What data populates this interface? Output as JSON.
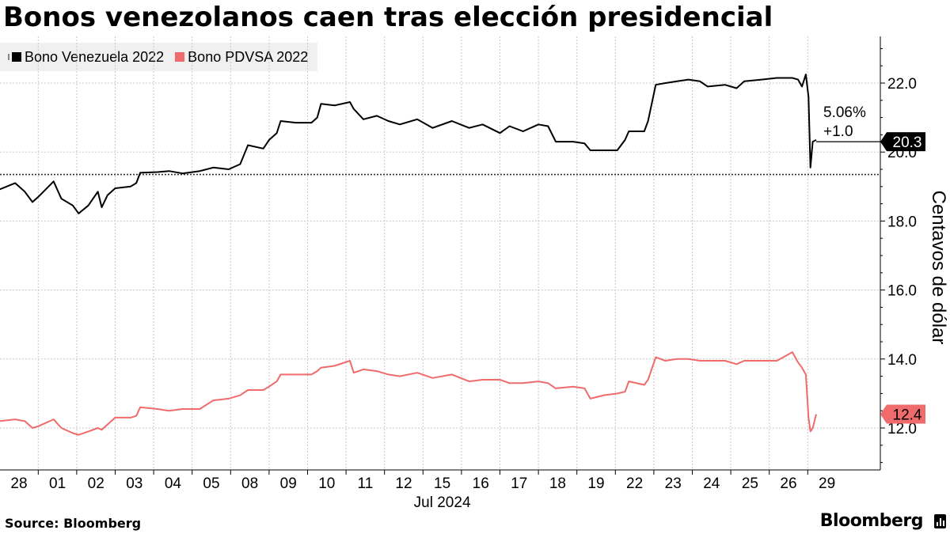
{
  "title": "Bonos venezolanos caen tras elección presidencial",
  "legend": [
    {
      "label": "Bono Venezuela 2022",
      "color": "#000000"
    },
    {
      "label": "Bono PDVSA 2022",
      "color": "#f06b6b"
    }
  ],
  "source": "Source:  Bloomberg",
  "brand": "Bloomberg",
  "chart_data": {
    "type": "line",
    "ylabel": "Centavos de dólar",
    "xlabel": "Jul 2024",
    "ylim": [
      11.0,
      23.3
    ],
    "yticks": [
      "22.0",
      "20.0",
      "18.0",
      "16.0",
      "14.0",
      "12.0"
    ],
    "ytick_values": [
      22.0,
      20.0,
      18.0,
      16.0,
      14.0,
      12.0
    ],
    "xticks": [
      "28",
      "01",
      "02",
      "03",
      "04",
      "05",
      "08",
      "09",
      "10",
      "11",
      "12",
      "15",
      "16",
      "17",
      "18",
      "19",
      "22",
      "23",
      "24",
      "25",
      "26",
      "29"
    ],
    "reference_line": 19.35,
    "annotation": {
      "pct": "5.06%",
      "change": "+1.0"
    },
    "last_values": [
      {
        "series": "Bono Venezuela 2022",
        "label": "20.3",
        "value": 20.3
      },
      {
        "series": "Bono PDVSA 2022",
        "label": "12.4",
        "value": 12.4
      }
    ],
    "series": [
      {
        "name": "Bono Venezuela 2022",
        "color": "#000000",
        "points": [
          [
            -0.5,
            18.92
          ],
          [
            -0.1,
            19.1
          ],
          [
            0.15,
            18.85
          ],
          [
            0.35,
            18.55
          ],
          [
            0.5,
            18.7
          ],
          [
            0.9,
            19.15
          ],
          [
            1.1,
            18.65
          ],
          [
            1.4,
            18.45
          ],
          [
            1.55,
            18.22
          ],
          [
            1.8,
            18.45
          ],
          [
            2.05,
            18.85
          ],
          [
            2.15,
            18.4
          ],
          [
            2.3,
            18.75
          ],
          [
            2.5,
            18.95
          ],
          [
            2.9,
            19.0
          ],
          [
            3.05,
            19.1
          ],
          [
            3.15,
            19.4
          ],
          [
            3.6,
            19.42
          ],
          [
            3.9,
            19.45
          ],
          [
            4.25,
            19.38
          ],
          [
            4.7,
            19.45
          ],
          [
            5.05,
            19.55
          ],
          [
            5.45,
            19.5
          ],
          [
            5.75,
            19.65
          ],
          [
            5.95,
            20.2
          ],
          [
            6.35,
            20.1
          ],
          [
            6.5,
            20.35
          ],
          [
            6.7,
            20.55
          ],
          [
            6.8,
            20.9
          ],
          [
            7.2,
            20.85
          ],
          [
            7.6,
            20.85
          ],
          [
            7.75,
            21.0
          ],
          [
            7.85,
            21.4
          ],
          [
            8.2,
            21.35
          ],
          [
            8.6,
            21.45
          ],
          [
            8.7,
            21.25
          ],
          [
            8.95,
            20.95
          ],
          [
            9.3,
            21.05
          ],
          [
            9.6,
            20.9
          ],
          [
            9.9,
            20.8
          ],
          [
            10.35,
            20.95
          ],
          [
            10.75,
            20.7
          ],
          [
            11.25,
            20.9
          ],
          [
            11.7,
            20.7
          ],
          [
            12.05,
            20.8
          ],
          [
            12.5,
            20.55
          ],
          [
            12.75,
            20.75
          ],
          [
            13.1,
            20.6
          ],
          [
            13.5,
            20.8
          ],
          [
            13.75,
            20.75
          ],
          [
            13.95,
            20.3
          ],
          [
            14.4,
            20.3
          ],
          [
            14.7,
            20.25
          ],
          [
            14.85,
            20.05
          ],
          [
            15.2,
            20.05
          ],
          [
            15.55,
            20.05
          ],
          [
            15.75,
            20.35
          ],
          [
            15.85,
            20.6
          ],
          [
            16.25,
            20.6
          ],
          [
            16.35,
            20.9
          ],
          [
            16.55,
            21.95
          ],
          [
            16.8,
            22.0
          ],
          [
            17.1,
            22.05
          ],
          [
            17.4,
            22.1
          ],
          [
            17.7,
            22.05
          ],
          [
            17.9,
            21.9
          ],
          [
            18.35,
            21.95
          ],
          [
            18.65,
            21.85
          ],
          [
            18.85,
            22.05
          ],
          [
            19.3,
            22.1
          ],
          [
            19.7,
            22.15
          ],
          [
            20.1,
            22.15
          ],
          [
            20.25,
            22.1
          ],
          [
            20.35,
            21.9
          ],
          [
            20.45,
            22.25
          ],
          [
            20.52,
            21.6
          ],
          [
            20.57,
            19.55
          ],
          [
            20.63,
            20.3
          ],
          [
            20.72,
            20.35
          ]
        ]
      },
      {
        "name": "Bono PDVSA 2022",
        "color": "#f06b6b",
        "points": [
          [
            -0.5,
            12.2
          ],
          [
            -0.1,
            12.25
          ],
          [
            0.15,
            12.2
          ],
          [
            0.35,
            12.0
          ],
          [
            0.5,
            12.05
          ],
          [
            0.9,
            12.25
          ],
          [
            1.1,
            12.0
          ],
          [
            1.4,
            11.85
          ],
          [
            1.55,
            11.8
          ],
          [
            1.8,
            11.9
          ],
          [
            2.05,
            12.0
          ],
          [
            2.15,
            11.95
          ],
          [
            2.3,
            12.1
          ],
          [
            2.5,
            12.3
          ],
          [
            2.9,
            12.3
          ],
          [
            3.05,
            12.35
          ],
          [
            3.15,
            12.6
          ],
          [
            3.6,
            12.55
          ],
          [
            3.9,
            12.5
          ],
          [
            4.25,
            12.55
          ],
          [
            4.7,
            12.55
          ],
          [
            5.05,
            12.8
          ],
          [
            5.45,
            12.85
          ],
          [
            5.75,
            12.95
          ],
          [
            5.95,
            13.1
          ],
          [
            6.35,
            13.1
          ],
          [
            6.5,
            13.2
          ],
          [
            6.7,
            13.35
          ],
          [
            6.8,
            13.55
          ],
          [
            7.2,
            13.55
          ],
          [
            7.6,
            13.55
          ],
          [
            7.75,
            13.65
          ],
          [
            7.85,
            13.75
          ],
          [
            8.2,
            13.8
          ],
          [
            8.6,
            13.95
          ],
          [
            8.7,
            13.6
          ],
          [
            8.95,
            13.7
          ],
          [
            9.3,
            13.65
          ],
          [
            9.6,
            13.55
          ],
          [
            9.9,
            13.5
          ],
          [
            10.35,
            13.6
          ],
          [
            10.75,
            13.45
          ],
          [
            11.25,
            13.55
          ],
          [
            11.7,
            13.35
          ],
          [
            12.05,
            13.4
          ],
          [
            12.5,
            13.4
          ],
          [
            12.75,
            13.3
          ],
          [
            13.1,
            13.3
          ],
          [
            13.5,
            13.35
          ],
          [
            13.75,
            13.3
          ],
          [
            13.95,
            13.15
          ],
          [
            14.4,
            13.2
          ],
          [
            14.7,
            13.15
          ],
          [
            14.85,
            12.85
          ],
          [
            15.2,
            12.95
          ],
          [
            15.55,
            13.0
          ],
          [
            15.75,
            13.05
          ],
          [
            15.85,
            13.35
          ],
          [
            16.25,
            13.25
          ],
          [
            16.35,
            13.4
          ],
          [
            16.55,
            14.05
          ],
          [
            16.8,
            13.95
          ],
          [
            17.1,
            14.0
          ],
          [
            17.4,
            14.0
          ],
          [
            17.7,
            13.95
          ],
          [
            17.9,
            13.95
          ],
          [
            18.35,
            13.95
          ],
          [
            18.65,
            13.85
          ],
          [
            18.85,
            13.95
          ],
          [
            19.3,
            13.95
          ],
          [
            19.7,
            13.95
          ],
          [
            20.1,
            14.2
          ],
          [
            20.25,
            13.9
          ],
          [
            20.35,
            13.75
          ],
          [
            20.45,
            13.55
          ],
          [
            20.52,
            12.3
          ],
          [
            20.57,
            11.9
          ],
          [
            20.63,
            12.0
          ],
          [
            20.72,
            12.4
          ]
        ]
      }
    ]
  }
}
